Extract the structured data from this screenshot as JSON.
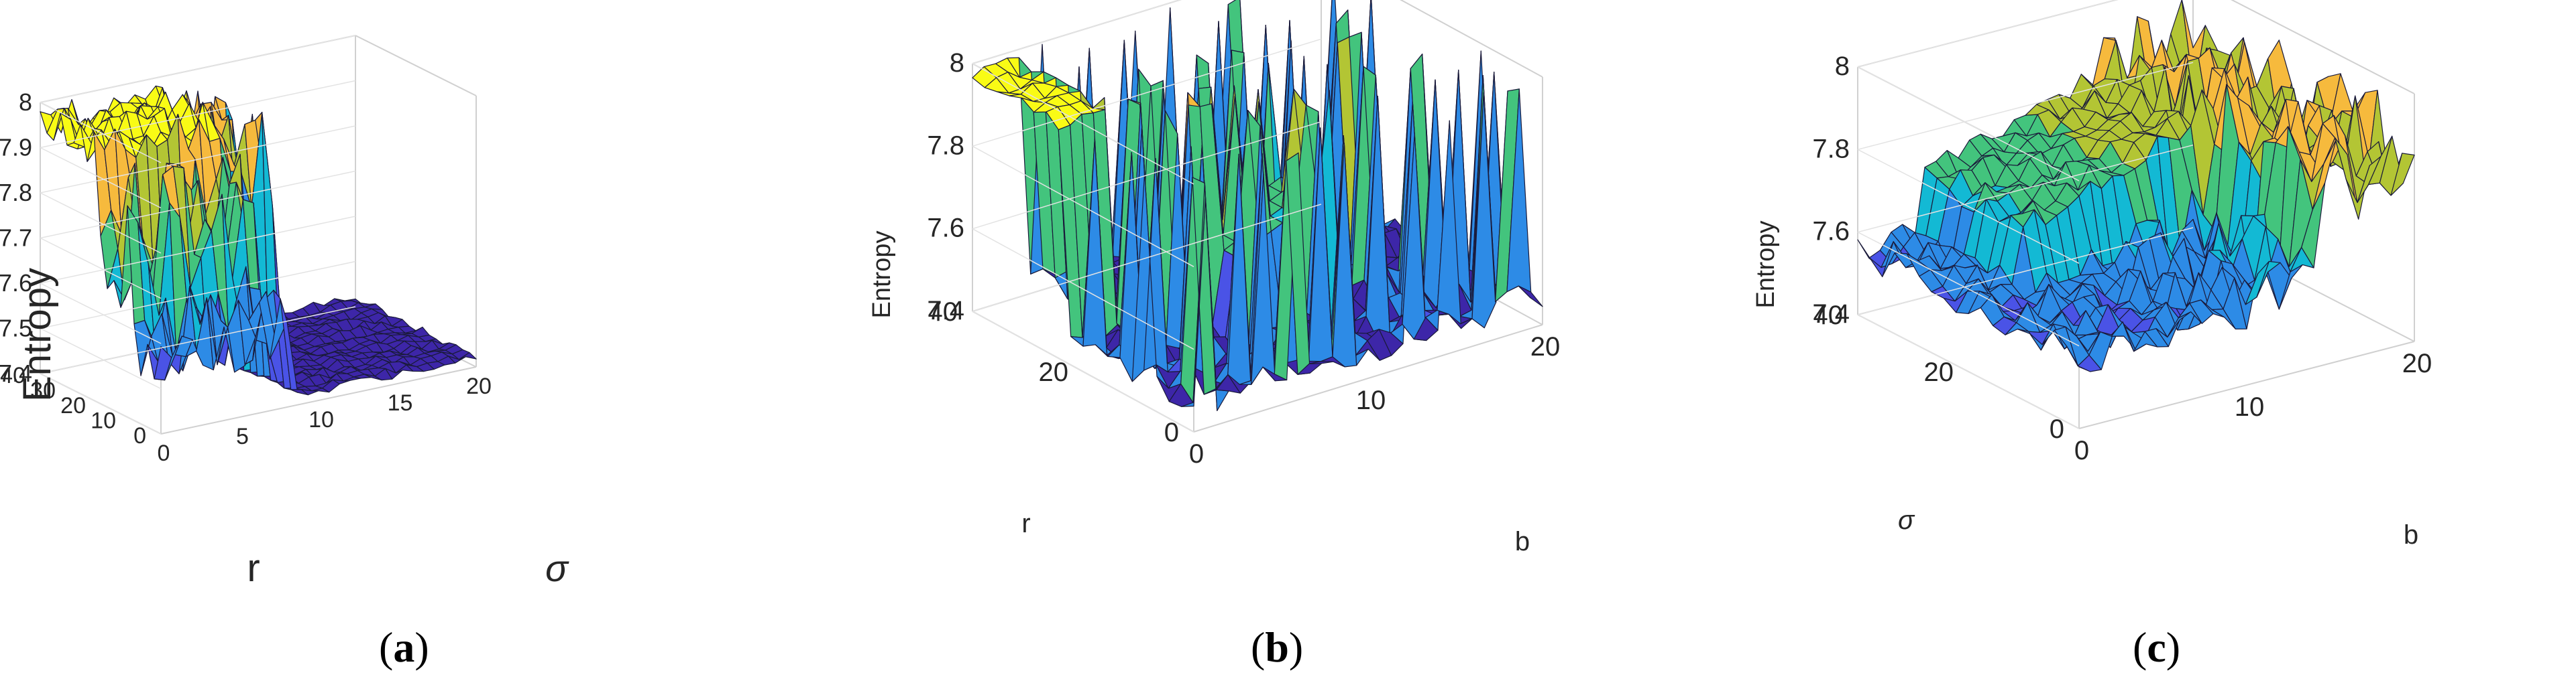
{
  "chart_data": [
    {
      "type": "surface3d",
      "panel": "a",
      "caption_letter": "a",
      "zlabel": "Entropy",
      "ylabel": "r",
      "xlabel": "σ",
      "zticks": [
        "7.4",
        "7.5",
        "7.6",
        "7.7",
        "7.8",
        "7.9",
        "8"
      ],
      "yticks": [
        "0",
        "10",
        "20",
        "30",
        "40"
      ],
      "xticks": [
        "0",
        "5",
        "10",
        "15",
        "20"
      ],
      "zlim": [
        7.4,
        8
      ],
      "ylim": [
        0,
        40
      ],
      "xlim": [
        0,
        20
      ],
      "colormap": [
        "#3d26a8",
        "#4a53e6",
        "#2d8be6",
        "#13b9d4",
        "#43c47d",
        "#b3c534",
        "#f6ba3d",
        "#f9fb15"
      ],
      "grid": true
    },
    {
      "type": "surface3d",
      "panel": "b",
      "caption_letter": "b",
      "zlabel": "Entropy",
      "ylabel": "r",
      "xlabel": "b",
      "zticks": [
        "7.4",
        "7.6",
        "7.8",
        "8"
      ],
      "yticks": [
        "0",
        "20",
        "40"
      ],
      "xticks": [
        "0",
        "10",
        "20"
      ],
      "zlim": [
        7.4,
        8
      ],
      "ylim": [
        0,
        40
      ],
      "xlim": [
        0,
        20
      ],
      "grid": true
    },
    {
      "type": "surface3d",
      "panel": "c",
      "caption_letter": "c",
      "zlabel": "Entropy",
      "ylabel": "σ",
      "xlabel": "b",
      "zticks": [
        "7.4",
        "7.6",
        "7.8",
        "8"
      ],
      "yticks": [
        "0",
        "20",
        "40"
      ],
      "xticks": [
        "0",
        "10",
        "20"
      ],
      "zlim": [
        7.4,
        8
      ],
      "ylim": [
        0,
        40
      ],
      "xlim": [
        0,
        20
      ],
      "grid": true
    }
  ]
}
